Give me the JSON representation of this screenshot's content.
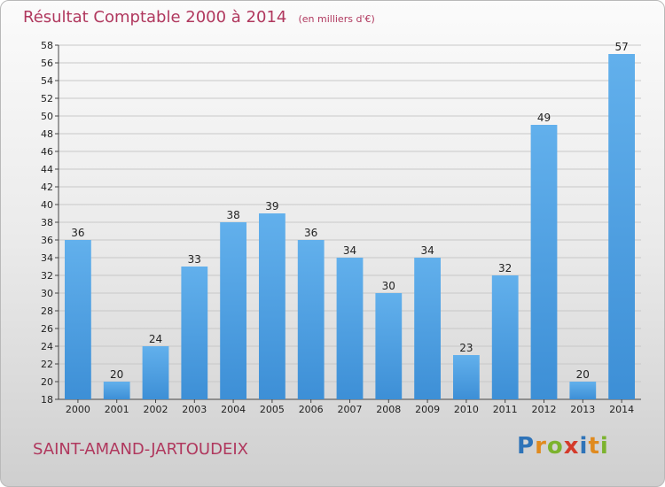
{
  "page": {
    "title": "Résultat Comptable 2000 à 2014",
    "subtitle": "(en milliers d'€)",
    "commune": "SAINT-AMAND-JARTOUDEIX",
    "logo": {
      "letters": [
        "P",
        "r",
        "o",
        "x",
        "i",
        "t",
        "i"
      ],
      "colors": [
        "#2e73b8",
        "#e08a1e",
        "#7cb32e",
        "#d43a2a",
        "#2e73b8",
        "#e08a1e",
        "#7cb32e"
      ]
    }
  },
  "colors": {
    "bar": "#3d8fd6",
    "bar_light": "#62b0ec",
    "grid": "#c8c8c8",
    "axis": "#444444",
    "text": "#222222"
  },
  "chart_data": {
    "type": "bar",
    "title": "Résultat Comptable 2000 à 2014",
    "ylabel": "en milliers d'€",
    "categories": [
      "2000",
      "2001",
      "2002",
      "2003",
      "2004",
      "2005",
      "2006",
      "2007",
      "2008",
      "2009",
      "2010",
      "2011",
      "2012",
      "2013",
      "2014"
    ],
    "values": [
      36,
      20,
      24,
      33,
      38,
      39,
      36,
      34,
      30,
      34,
      23,
      32,
      49,
      20,
      57
    ],
    "ylim": [
      18,
      58
    ],
    "ytick_step": 2,
    "grid": true
  }
}
